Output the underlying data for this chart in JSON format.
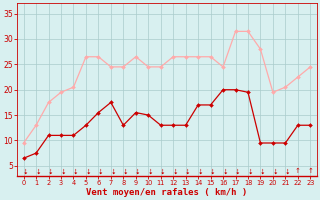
{
  "x": [
    0,
    1,
    2,
    3,
    4,
    5,
    6,
    7,
    8,
    9,
    10,
    11,
    12,
    13,
    14,
    15,
    16,
    17,
    18,
    19,
    20,
    21,
    22,
    23
  ],
  "wind_avg": [
    6.5,
    7.5,
    11,
    11,
    11,
    13,
    15.5,
    17.5,
    13,
    15.5,
    15,
    13,
    13,
    13,
    17,
    17,
    20,
    20,
    19.5,
    9.5,
    9.5,
    9.5,
    13,
    13
  ],
  "wind_gust": [
    9.5,
    13,
    17.5,
    19.5,
    20.5,
    26.5,
    26.5,
    24.5,
    24.5,
    26.5,
    24.5,
    24.5,
    26.5,
    26.5,
    26.5,
    26.5,
    24.5,
    31.5,
    31.5,
    28,
    19.5,
    20.5,
    22.5,
    24.5
  ],
  "avg_color": "#cc0000",
  "gust_color": "#ffaaaa",
  "bg_color": "#d8f0f0",
  "grid_color": "#aacccc",
  "axis_color": "#cc0000",
  "tick_color": "#cc0000",
  "xlabel": "Vent moyen/en rafales ( km/h )",
  "ylim": [
    3,
    37
  ],
  "yticks": [
    5,
    10,
    15,
    20,
    25,
    30,
    35
  ],
  "xlim": [
    -0.5,
    23.5
  ],
  "wind_dirs": [
    225,
    225,
    225,
    225,
    225,
    225,
    225,
    225,
    225,
    225,
    225,
    225,
    225,
    225,
    225,
    225,
    225,
    225,
    225,
    225,
    225,
    225,
    0,
    0
  ]
}
